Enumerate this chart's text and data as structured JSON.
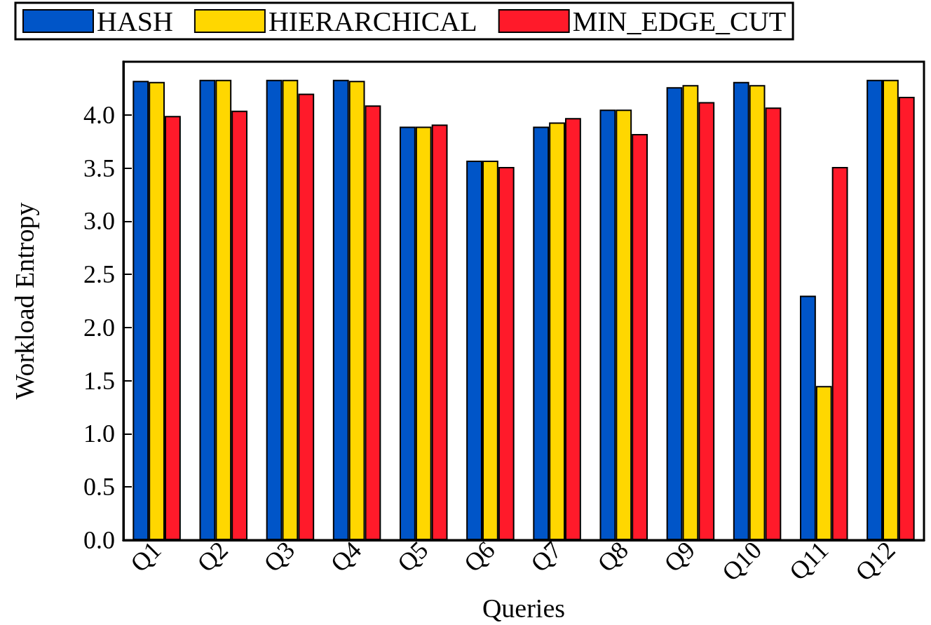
{
  "chart_data": {
    "type": "bar",
    "xlabel": "Queries",
    "ylabel": "Workload Entropy",
    "categories": [
      "Q1",
      "Q2",
      "Q3",
      "Q4",
      "Q5",
      "Q6",
      "Q7",
      "Q8",
      "Q9",
      "Q10",
      "Q11",
      "Q12"
    ],
    "series": [
      {
        "name": "HASH",
        "color": "#0055c8",
        "values": [
          4.32,
          4.33,
          4.33,
          4.33,
          3.89,
          3.57,
          3.89,
          4.05,
          4.26,
          4.31,
          2.3,
          4.33
        ]
      },
      {
        "name": "HIERARCHICAL",
        "color": "#ffd700",
        "values": [
          4.31,
          4.33,
          4.33,
          4.32,
          3.89,
          3.57,
          3.93,
          4.05,
          4.28,
          4.28,
          1.45,
          4.33
        ]
      },
      {
        "name": "MIN_EDGE_CUT",
        "color": "#ff1a2a",
        "values": [
          3.99,
          4.04,
          4.2,
          4.09,
          3.91,
          3.51,
          3.97,
          3.82,
          4.12,
          4.07,
          3.51,
          4.17
        ]
      }
    ],
    "ylim": [
      0,
      4.5
    ],
    "yticks": [
      {
        "value": 0,
        "label": "0.0"
      },
      {
        "value": 0.5,
        "label": "0.5"
      },
      {
        "value": 1,
        "label": "1.0"
      },
      {
        "value": 1.5,
        "label": "1.5"
      },
      {
        "value": 2,
        "label": "2.0"
      },
      {
        "value": 2.5,
        "label": "2.5"
      },
      {
        "value": 3,
        "label": "3.0"
      },
      {
        "value": 3.5,
        "label": "3.5"
      },
      {
        "value": 4,
        "label": "4.0"
      }
    ],
    "legend": "top",
    "grid": false
  }
}
